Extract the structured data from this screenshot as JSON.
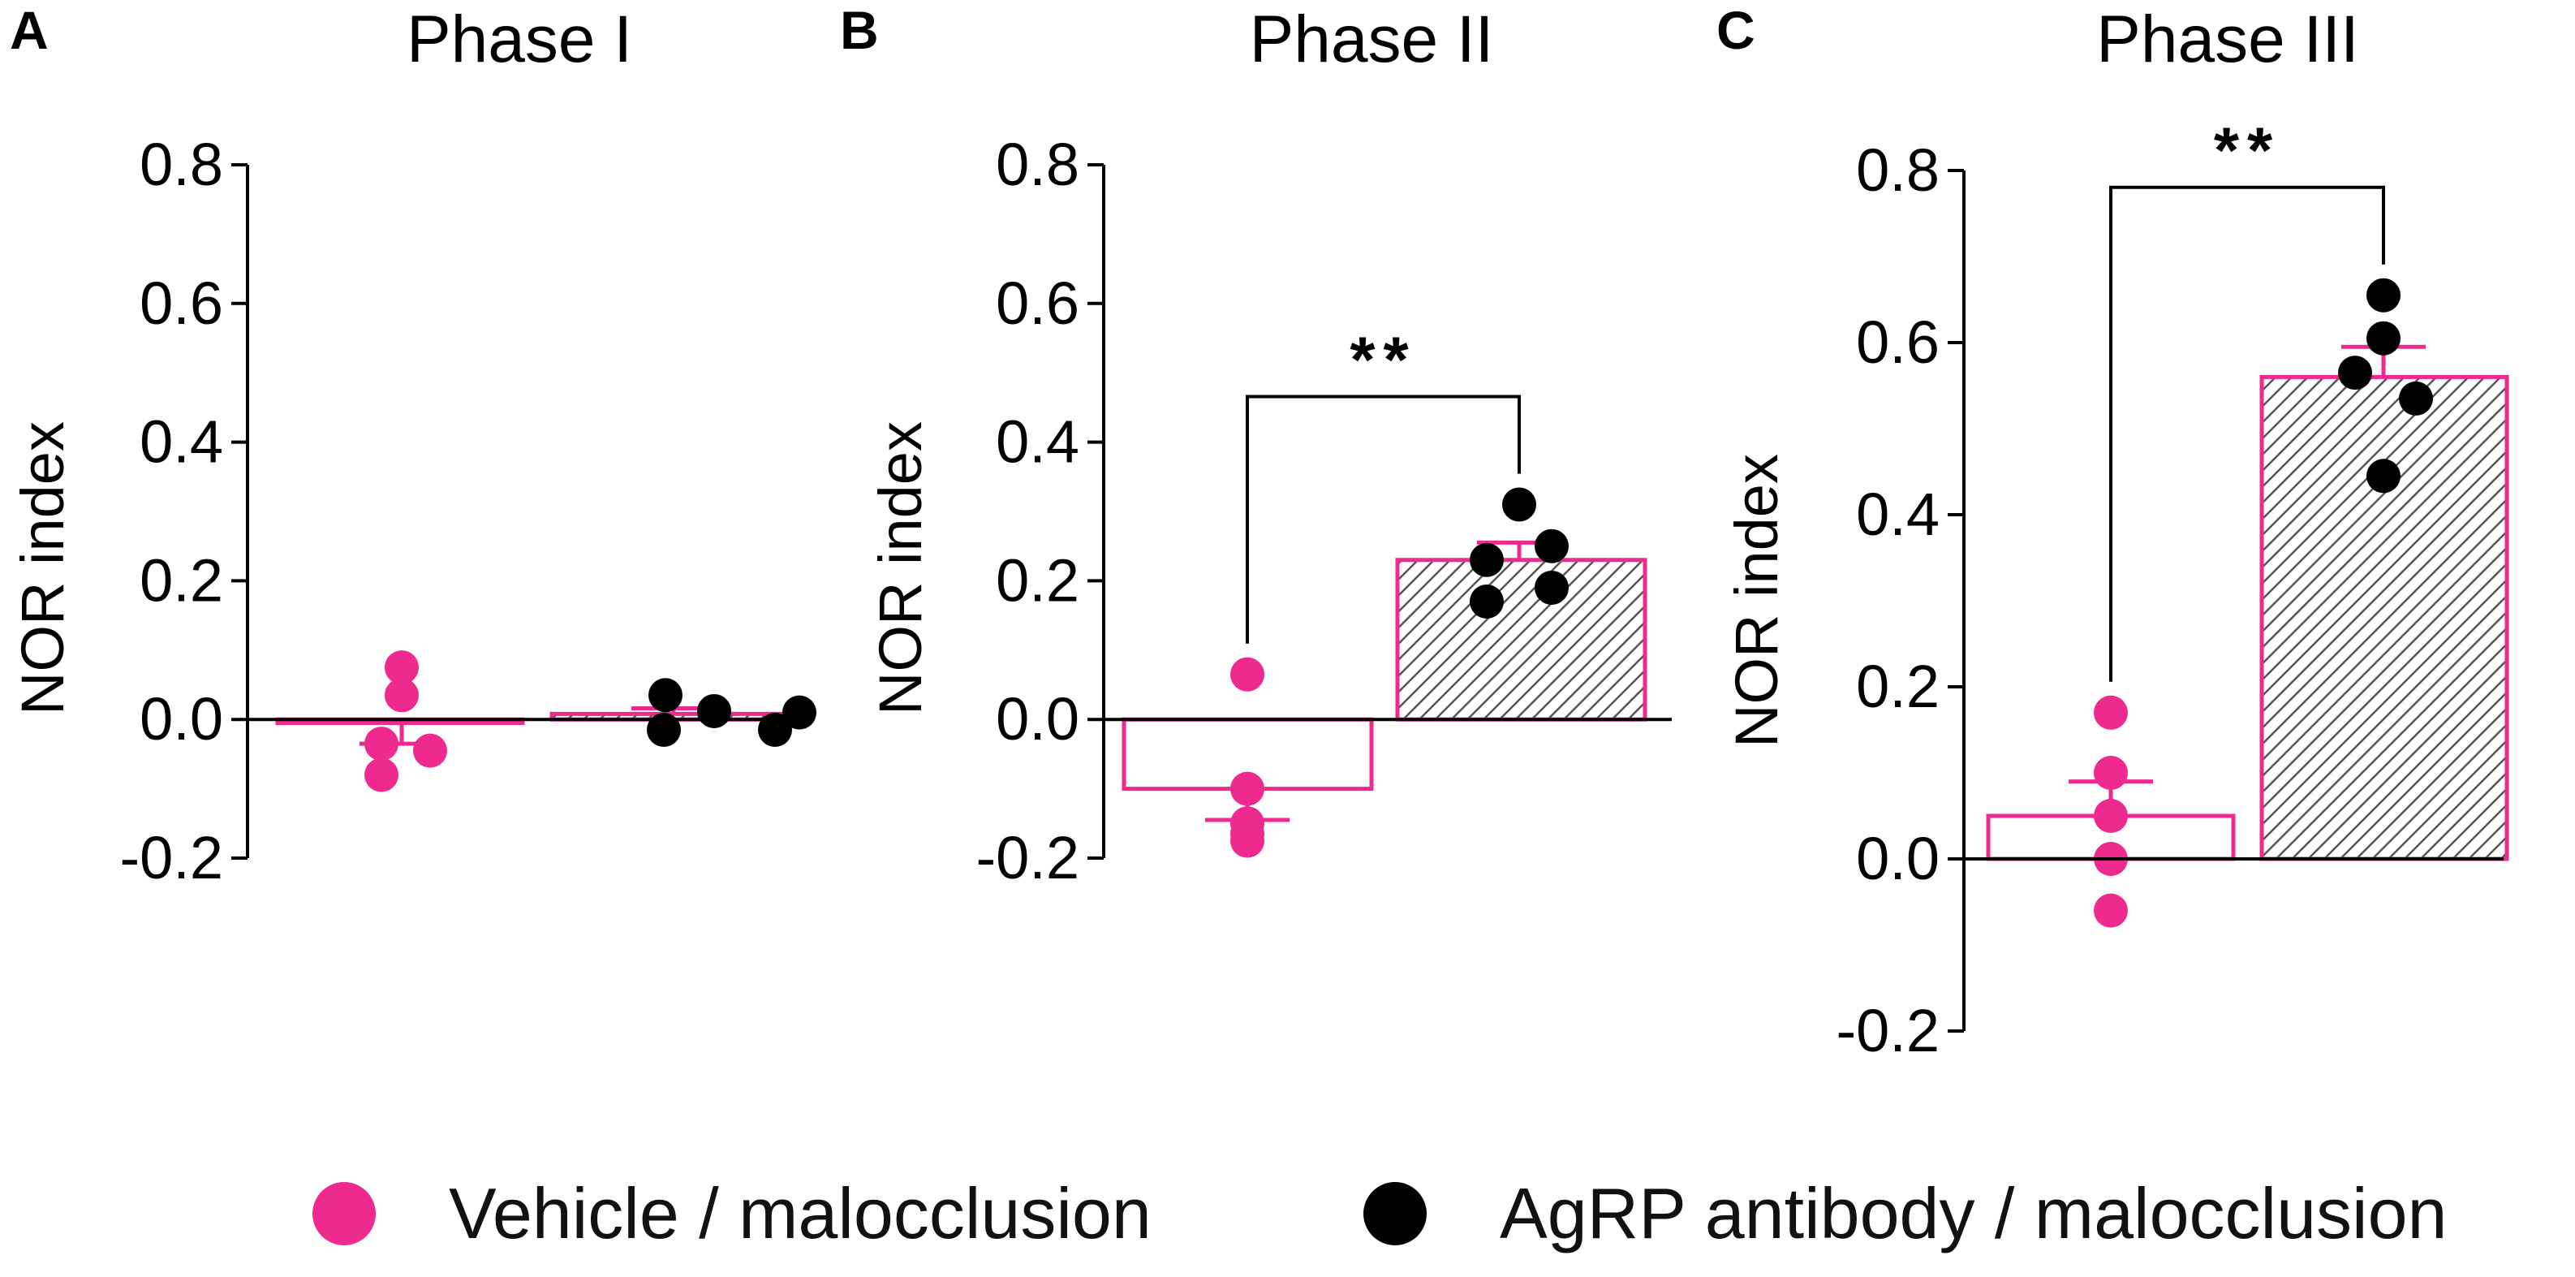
{
  "colors": {
    "vehicle": "#ee2a8e",
    "agrp": "#000000",
    "bar_fill": "#ffffff",
    "hatch": "#555555",
    "axis": "#000000"
  },
  "legend": {
    "vehicle_label": "Vehicle / malocclusion",
    "agrp_label": "AgRP antibody / malocclusion"
  },
  "chart_data": [
    {
      "panel": "A",
      "type": "bar",
      "title": "Phase I",
      "ylabel": "NOR index",
      "ylim": [
        -0.2,
        0.8
      ],
      "yticks": [
        0.8,
        0.6,
        0.4,
        0.2,
        0.0,
        -0.2
      ],
      "ytick_labels": [
        "0.8",
        "0.6",
        "0.4",
        "0.2",
        "0.0",
        "-0.2"
      ],
      "categories": [
        "Vehicle / malocclusion",
        "AgRP antibody / malocclusion"
      ],
      "series": [
        {
          "name": "Vehicle / malocclusion",
          "mean": -0.005,
          "sem": 0.03,
          "points": [
            0.075,
            0.035,
            -0.035,
            -0.045,
            -0.08
          ]
        },
        {
          "name": "AgRP antibody / malocclusion",
          "mean": 0.008,
          "sem": 0.008,
          "points": [
            0.035,
            -0.015,
            0.012,
            -0.015,
            0.01
          ]
        }
      ],
      "significance": null
    },
    {
      "panel": "B",
      "type": "bar",
      "title": "Phase II",
      "ylabel": "NOR index",
      "ylim": [
        -0.2,
        0.8
      ],
      "yticks": [
        0.8,
        0.6,
        0.4,
        0.2,
        0.0,
        -0.2
      ],
      "ytick_labels": [
        "0.8",
        "0.6",
        "0.4",
        "0.2",
        "0.0",
        "-0.2"
      ],
      "categories": [
        "Vehicle / malocclusion",
        "AgRP antibody / malocclusion"
      ],
      "series": [
        {
          "name": "Vehicle / malocclusion",
          "mean": -0.1,
          "sem": 0.045,
          "points": [
            0.065,
            -0.1,
            -0.15,
            -0.165,
            -0.175
          ]
        },
        {
          "name": "AgRP antibody / malocclusion",
          "mean": 0.23,
          "sem": 0.025,
          "points": [
            0.31,
            0.25,
            0.23,
            0.19,
            0.17
          ]
        }
      ],
      "significance": {
        "label": "**"
      }
    },
    {
      "panel": "C",
      "type": "bar",
      "title": "Phase III",
      "ylabel": "NOR index",
      "ylim": [
        -0.2,
        0.8
      ],
      "yticks": [
        0.8,
        0.6,
        0.4,
        0.2,
        0.0,
        -0.2
      ],
      "ytick_labels": [
        "0.8",
        "0.6",
        "0.4",
        "0.2",
        "0.0",
        "-0.2"
      ],
      "categories": [
        "Vehicle / malocclusion",
        "AgRP antibody / malocclusion"
      ],
      "series": [
        {
          "name": "Vehicle / malocclusion",
          "mean": 0.05,
          "sem": 0.04,
          "points": [
            0.17,
            0.1,
            0.05,
            0.0,
            -0.06
          ]
        },
        {
          "name": "AgRP antibody / malocclusion",
          "mean": 0.56,
          "sem": 0.035,
          "points": [
            0.655,
            0.605,
            0.565,
            0.535,
            0.445
          ]
        }
      ],
      "significance": {
        "label": "**"
      }
    }
  ]
}
